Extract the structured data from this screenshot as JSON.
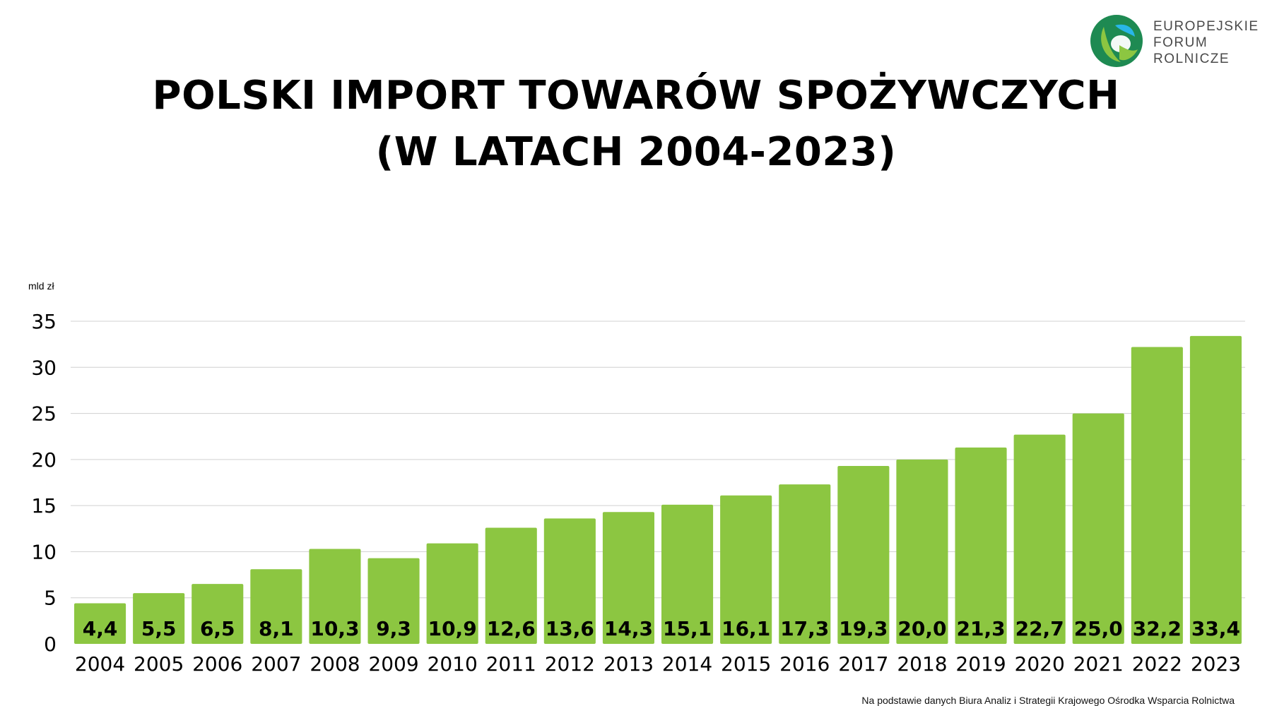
{
  "chart_data": {
    "type": "bar",
    "title": "POLSKI IMPORT TOWARÓW SPOŻYWCZYCH",
    "subtitle": "(W LATACH 2004-2023)",
    "ylabel": "mld zł",
    "xlabel": "",
    "categories": [
      "2004",
      "2005",
      "2006",
      "2007",
      "2008",
      "2009",
      "2010",
      "2011",
      "2012",
      "2013",
      "2014",
      "2015",
      "2016",
      "2017",
      "2018",
      "2019",
      "2020",
      "2021",
      "2022",
      "2023"
    ],
    "values": [
      4.4,
      5.5,
      6.5,
      8.1,
      10.3,
      9.3,
      10.9,
      12.6,
      13.6,
      14.3,
      15.1,
      16.1,
      17.3,
      19.3,
      20.0,
      21.3,
      22.7,
      25.0,
      32.2,
      33.4
    ],
    "value_labels": [
      "4,4",
      "5,5",
      "6,5",
      "8,1",
      "10,3",
      "9,3",
      "10,9",
      "12,6",
      "13,6",
      "14,3",
      "15,1",
      "16,1",
      "17,3",
      "19,3",
      "20,0",
      "21,3",
      "22,7",
      "25,0",
      "32,2",
      "33,4"
    ],
    "yticks": [
      "0",
      "5",
      "10",
      "15",
      "20",
      "25",
      "30",
      "35"
    ],
    "ylim": [
      0,
      35
    ],
    "grid": true,
    "bar_color": "#8cc641",
    "gridline_color": "#d0d0d0"
  },
  "logo": {
    "lines": [
      "EUROPEJSKIE",
      "FORUM",
      "ROLNICZE"
    ],
    "colors": {
      "dark_green": "#1e8a52",
      "light_green": "#8cc641",
      "blue": "#29b6e8"
    }
  },
  "source": "Na podstawie danych Biura Analiz i Strategii Krajowego Ośrodka Wsparcia Rolnictwa"
}
